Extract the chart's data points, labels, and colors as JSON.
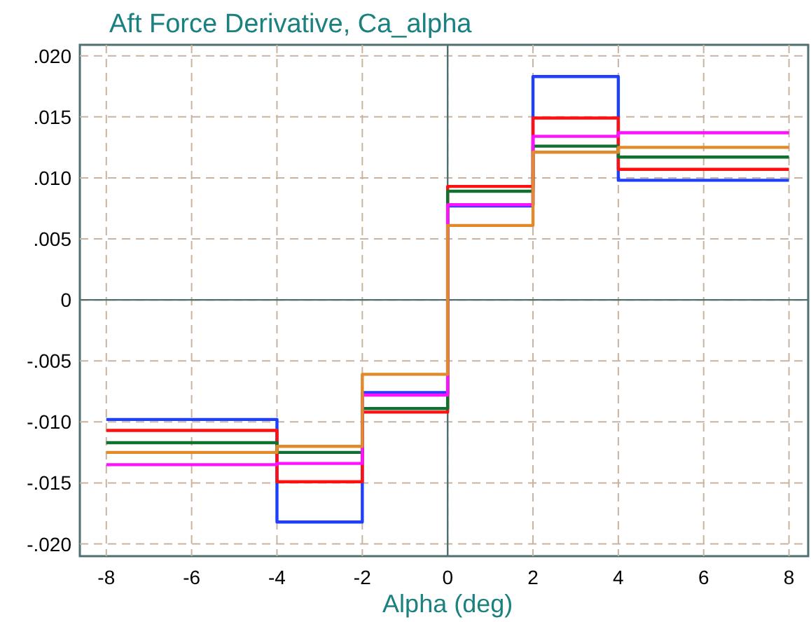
{
  "chart_data": {
    "type": "step",
    "title": "Aft Force Derivative, Ca_alpha",
    "xlabel": "Alpha (deg)",
    "x": [
      -8,
      -4,
      -2,
      0,
      2,
      4,
      8
    ],
    "series": [
      {
        "color": "#1f3fff",
        "values": [
          -0.0098,
          -0.0182,
          -0.0076,
          0.0077,
          0.0183,
          0.0098,
          0.0098
        ]
      },
      {
        "color": "#ff1010",
        "values": [
          -0.0107,
          -0.0149,
          -0.0092,
          0.0093,
          0.0149,
          0.0107,
          0.0107
        ]
      },
      {
        "color": "#107030",
        "values": [
          -0.0117,
          -0.0125,
          -0.0089,
          0.0089,
          0.0126,
          0.0117,
          0.0117
        ]
      },
      {
        "color": "#ff10ff",
        "values": [
          -0.0135,
          -0.0134,
          -0.0078,
          0.0078,
          0.0134,
          0.0137,
          0.0137
        ]
      },
      {
        "color": "#e08a2a",
        "values": [
          -0.0125,
          -0.012,
          -0.0061,
          0.0061,
          0.0121,
          0.0125,
          0.0125
        ]
      }
    ],
    "xlim": [
      -8.62,
      8.45
    ],
    "ylim": [
      -0.021,
      0.0209
    ],
    "xticks": [
      -8,
      -6,
      -4,
      -2,
      0,
      2,
      4,
      6,
      8
    ],
    "yticks": [
      {
        "value": -0.02,
        "label": "-.020"
      },
      {
        "value": -0.015,
        "label": "-.015"
      },
      {
        "value": -0.01,
        "label": "-.010"
      },
      {
        "value": -0.005,
        "label": "-.005"
      },
      0,
      {
        "value": 0.005,
        "label": ".005"
      },
      {
        "value": 0.01,
        "label": ".010"
      },
      {
        "value": 0.015,
        "label": ".015"
      },
      {
        "value": 0.02,
        "label": ".020"
      }
    ],
    "grid": true,
    "line_style": "solid"
  }
}
